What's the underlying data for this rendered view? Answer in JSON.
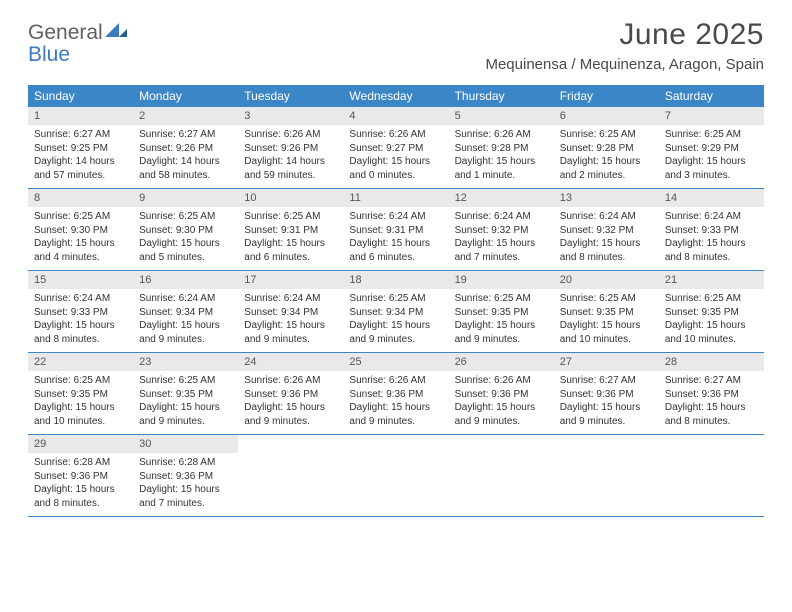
{
  "logo": {
    "line1": "General",
    "line2": "Blue"
  },
  "title": "June 2025",
  "subtitle": "Mequinensa / Mequinenza, Aragon, Spain",
  "colors": {
    "header_bg": "#3b86c7",
    "header_text": "#ffffff",
    "daynum_bg": "#e9e9e9",
    "border": "#3b86c7",
    "title_color": "#4a4a4a",
    "logo_gray": "#606060",
    "logo_blue": "#3b7bbf"
  },
  "dayHeaders": [
    "Sunday",
    "Monday",
    "Tuesday",
    "Wednesday",
    "Thursday",
    "Friday",
    "Saturday"
  ],
  "weeks": [
    [
      {
        "num": "1",
        "sunrise": "Sunrise: 6:27 AM",
        "sunset": "Sunset: 9:25 PM",
        "daylight": "Daylight: 14 hours and 57 minutes."
      },
      {
        "num": "2",
        "sunrise": "Sunrise: 6:27 AM",
        "sunset": "Sunset: 9:26 PM",
        "daylight": "Daylight: 14 hours and 58 minutes."
      },
      {
        "num": "3",
        "sunrise": "Sunrise: 6:26 AM",
        "sunset": "Sunset: 9:26 PM",
        "daylight": "Daylight: 14 hours and 59 minutes."
      },
      {
        "num": "4",
        "sunrise": "Sunrise: 6:26 AM",
        "sunset": "Sunset: 9:27 PM",
        "daylight": "Daylight: 15 hours and 0 minutes."
      },
      {
        "num": "5",
        "sunrise": "Sunrise: 6:26 AM",
        "sunset": "Sunset: 9:28 PM",
        "daylight": "Daylight: 15 hours and 1 minute."
      },
      {
        "num": "6",
        "sunrise": "Sunrise: 6:25 AM",
        "sunset": "Sunset: 9:28 PM",
        "daylight": "Daylight: 15 hours and 2 minutes."
      },
      {
        "num": "7",
        "sunrise": "Sunrise: 6:25 AM",
        "sunset": "Sunset: 9:29 PM",
        "daylight": "Daylight: 15 hours and 3 minutes."
      }
    ],
    [
      {
        "num": "8",
        "sunrise": "Sunrise: 6:25 AM",
        "sunset": "Sunset: 9:30 PM",
        "daylight": "Daylight: 15 hours and 4 minutes."
      },
      {
        "num": "9",
        "sunrise": "Sunrise: 6:25 AM",
        "sunset": "Sunset: 9:30 PM",
        "daylight": "Daylight: 15 hours and 5 minutes."
      },
      {
        "num": "10",
        "sunrise": "Sunrise: 6:25 AM",
        "sunset": "Sunset: 9:31 PM",
        "daylight": "Daylight: 15 hours and 6 minutes."
      },
      {
        "num": "11",
        "sunrise": "Sunrise: 6:24 AM",
        "sunset": "Sunset: 9:31 PM",
        "daylight": "Daylight: 15 hours and 6 minutes."
      },
      {
        "num": "12",
        "sunrise": "Sunrise: 6:24 AM",
        "sunset": "Sunset: 9:32 PM",
        "daylight": "Daylight: 15 hours and 7 minutes."
      },
      {
        "num": "13",
        "sunrise": "Sunrise: 6:24 AM",
        "sunset": "Sunset: 9:32 PM",
        "daylight": "Daylight: 15 hours and 8 minutes."
      },
      {
        "num": "14",
        "sunrise": "Sunrise: 6:24 AM",
        "sunset": "Sunset: 9:33 PM",
        "daylight": "Daylight: 15 hours and 8 minutes."
      }
    ],
    [
      {
        "num": "15",
        "sunrise": "Sunrise: 6:24 AM",
        "sunset": "Sunset: 9:33 PM",
        "daylight": "Daylight: 15 hours and 8 minutes."
      },
      {
        "num": "16",
        "sunrise": "Sunrise: 6:24 AM",
        "sunset": "Sunset: 9:34 PM",
        "daylight": "Daylight: 15 hours and 9 minutes."
      },
      {
        "num": "17",
        "sunrise": "Sunrise: 6:24 AM",
        "sunset": "Sunset: 9:34 PM",
        "daylight": "Daylight: 15 hours and 9 minutes."
      },
      {
        "num": "18",
        "sunrise": "Sunrise: 6:25 AM",
        "sunset": "Sunset: 9:34 PM",
        "daylight": "Daylight: 15 hours and 9 minutes."
      },
      {
        "num": "19",
        "sunrise": "Sunrise: 6:25 AM",
        "sunset": "Sunset: 9:35 PM",
        "daylight": "Daylight: 15 hours and 9 minutes."
      },
      {
        "num": "20",
        "sunrise": "Sunrise: 6:25 AM",
        "sunset": "Sunset: 9:35 PM",
        "daylight": "Daylight: 15 hours and 10 minutes."
      },
      {
        "num": "21",
        "sunrise": "Sunrise: 6:25 AM",
        "sunset": "Sunset: 9:35 PM",
        "daylight": "Daylight: 15 hours and 10 minutes."
      }
    ],
    [
      {
        "num": "22",
        "sunrise": "Sunrise: 6:25 AM",
        "sunset": "Sunset: 9:35 PM",
        "daylight": "Daylight: 15 hours and 10 minutes."
      },
      {
        "num": "23",
        "sunrise": "Sunrise: 6:25 AM",
        "sunset": "Sunset: 9:35 PM",
        "daylight": "Daylight: 15 hours and 9 minutes."
      },
      {
        "num": "24",
        "sunrise": "Sunrise: 6:26 AM",
        "sunset": "Sunset: 9:36 PM",
        "daylight": "Daylight: 15 hours and 9 minutes."
      },
      {
        "num": "25",
        "sunrise": "Sunrise: 6:26 AM",
        "sunset": "Sunset: 9:36 PM",
        "daylight": "Daylight: 15 hours and 9 minutes."
      },
      {
        "num": "26",
        "sunrise": "Sunrise: 6:26 AM",
        "sunset": "Sunset: 9:36 PM",
        "daylight": "Daylight: 15 hours and 9 minutes."
      },
      {
        "num": "27",
        "sunrise": "Sunrise: 6:27 AM",
        "sunset": "Sunset: 9:36 PM",
        "daylight": "Daylight: 15 hours and 9 minutes."
      },
      {
        "num": "28",
        "sunrise": "Sunrise: 6:27 AM",
        "sunset": "Sunset: 9:36 PM",
        "daylight": "Daylight: 15 hours and 8 minutes."
      }
    ],
    [
      {
        "num": "29",
        "sunrise": "Sunrise: 6:28 AM",
        "sunset": "Sunset: 9:36 PM",
        "daylight": "Daylight: 15 hours and 8 minutes."
      },
      {
        "num": "30",
        "sunrise": "Sunrise: 6:28 AM",
        "sunset": "Sunset: 9:36 PM",
        "daylight": "Daylight: 15 hours and 7 minutes."
      },
      null,
      null,
      null,
      null,
      null
    ]
  ]
}
